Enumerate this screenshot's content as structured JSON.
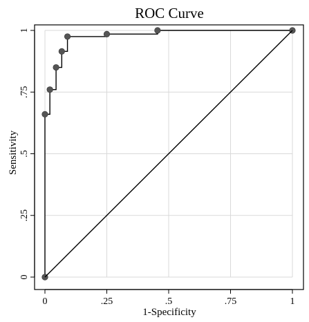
{
  "chart_data": {
    "type": "line",
    "title": "ROC Curve",
    "xlabel": "1-Specificity",
    "ylabel": "Sensitivity",
    "xlim": [
      0,
      1
    ],
    "ylim": [
      0,
      1
    ],
    "xticks": [
      {
        "value": 0,
        "label": "0"
      },
      {
        "value": 0.25,
        "label": ".25"
      },
      {
        "value": 0.5,
        "label": ".5"
      },
      {
        "value": 0.75,
        "label": ".75"
      },
      {
        "value": 1,
        "label": "1"
      }
    ],
    "yticks": [
      {
        "value": 0,
        "label": "0"
      },
      {
        "value": 0.25,
        "label": ".25"
      },
      {
        "value": 0.5,
        "label": ".5"
      },
      {
        "value": 0.75,
        "label": ".75"
      },
      {
        "value": 1,
        "label": "1"
      }
    ],
    "grid": true,
    "series": [
      {
        "style": "step",
        "marker": "circle",
        "color": "#555555",
        "x": [
          0,
          0,
          0.02,
          0.045,
          0.068,
          0.091,
          0.25,
          0.455,
          1
        ],
        "y": [
          0,
          0.66,
          0.76,
          0.85,
          0.915,
          0.975,
          0.985,
          1,
          1
        ]
      },
      {
        "style": "reference",
        "color": "#000000",
        "x": [
          0,
          1
        ],
        "y": [
          0,
          1
        ]
      }
    ]
  }
}
